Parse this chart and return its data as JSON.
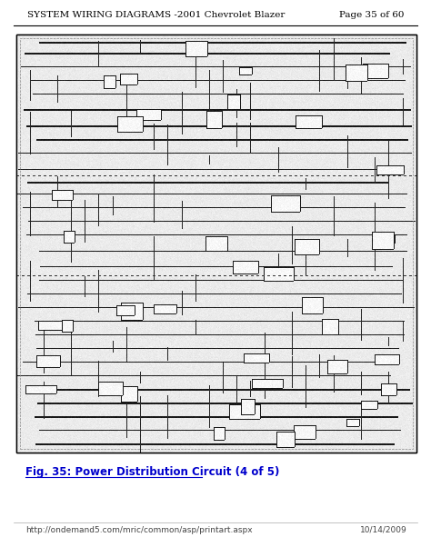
{
  "header_left": "SYSTEM WIRING DIAGRAMS -2001 Chevrolet Blazer",
  "header_right": "Page 35 of 60",
  "footer_left": "http://ondemand5.com/mric/common/asp/printart.aspx",
  "footer_right": "10/14/2009",
  "caption": "Fig. 35: Power Distribution Circuit (4 of 5)",
  "caption_color": "#0000cc",
  "header_fontsize": 7.5,
  "footer_fontsize": 6.5,
  "caption_fontsize": 8.5,
  "bg_color": "#ffffff",
  "border_color": "#000000",
  "fig_width": 4.74,
  "fig_height": 6.13,
  "dpi": 100
}
